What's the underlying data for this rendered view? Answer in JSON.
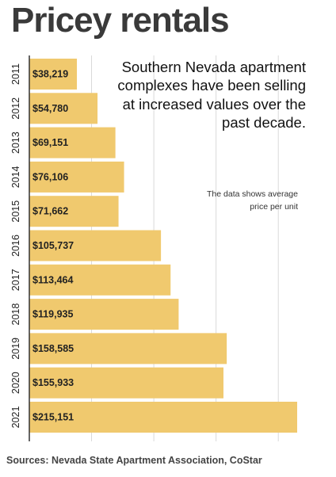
{
  "title": "Pricey rentals",
  "annotation": "Southern Nevada apartment complexes have been selling at increased values over the past decade.",
  "note": "The data shows average price per unit",
  "source": "Sources: Nevada State Apartment Association, CoStar",
  "colors": {
    "bar": "#f0c96e",
    "grid": "#d9d9d9",
    "axis": "#333333"
  },
  "chart_data": {
    "type": "bar",
    "orientation": "horizontal",
    "categories": [
      "2011",
      "2012",
      "2013",
      "2014",
      "2015",
      "2016",
      "2017",
      "2018",
      "2019",
      "2020",
      "2021"
    ],
    "values": [
      38219,
      54780,
      69151,
      76106,
      71662,
      105737,
      113464,
      119935,
      158585,
      155933,
      215151
    ],
    "value_labels": [
      "$38,219",
      "$54,780",
      "$69,151",
      "$76,106",
      "$71,662",
      "$105,737",
      "$113,464",
      "$119,935",
      "$158,585",
      "$155,933",
      "$215,151"
    ],
    "xlim": [
      0,
      220000
    ],
    "grid": true
  }
}
